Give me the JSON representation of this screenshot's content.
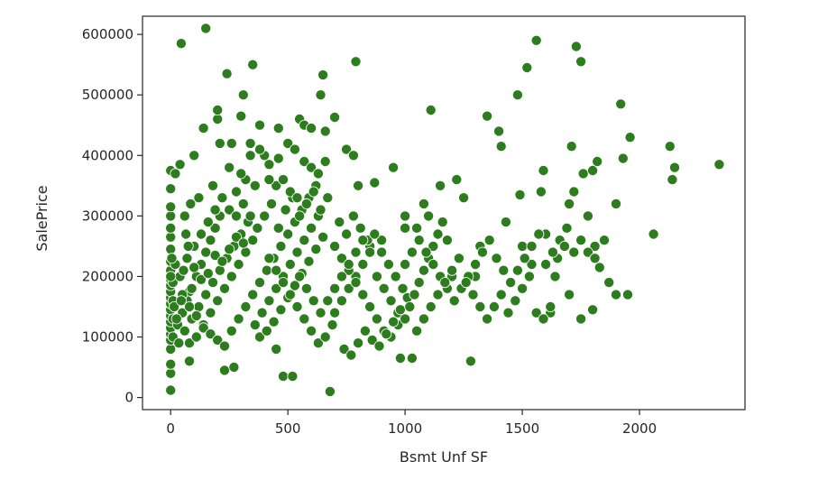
{
  "chart_data": {
    "type": "scatter",
    "title": "",
    "xlabel": "Bsmt Unf SF",
    "ylabel": "SalePrice",
    "xlim": [
      -120,
      2450
    ],
    "ylim": [
      -20000,
      630000
    ],
    "xticks": [
      0,
      500,
      1000,
      1500,
      2000
    ],
    "yticks": [
      0,
      100000,
      200000,
      300000,
      400000,
      500000,
      600000
    ],
    "xtick_labels": [
      "0",
      "500",
      "1000",
      "1500",
      "2000"
    ],
    "ytick_labels": [
      "0",
      "100000",
      "200000",
      "300000",
      "400000",
      "500000",
      "600000"
    ],
    "grid": false,
    "legend": "none",
    "marker_color": "#2d7d1e",
    "marker_edge": "#ffffff",
    "points": [
      [
        0,
        12000
      ],
      [
        0,
        40000
      ],
      [
        0,
        55000
      ],
      [
        0,
        80000
      ],
      [
        0,
        95000
      ],
      [
        0,
        105000
      ],
      [
        0,
        115000
      ],
      [
        0,
        125000
      ],
      [
        0,
        135000
      ],
      [
        0,
        145000
      ],
      [
        0,
        155000
      ],
      [
        0,
        165000
      ],
      [
        0,
        175000
      ],
      [
        0,
        185000
      ],
      [
        0,
        195000
      ],
      [
        0,
        210000
      ],
      [
        0,
        225000
      ],
      [
        0,
        245000
      ],
      [
        0,
        265000
      ],
      [
        0,
        280000
      ],
      [
        0,
        300000
      ],
      [
        0,
        315000
      ],
      [
        0,
        345000
      ],
      [
        0,
        375000
      ],
      [
        10,
        100000
      ],
      [
        10,
        130000
      ],
      [
        10,
        160000
      ],
      [
        10,
        190000
      ],
      [
        20,
        220000
      ],
      [
        20,
        370000
      ],
      [
        40,
        385000
      ],
      [
        45,
        585000
      ],
      [
        60,
        300000
      ],
      [
        80,
        60000
      ],
      [
        80,
        175000
      ],
      [
        100,
        400000
      ],
      [
        120,
        330000
      ],
      [
        140,
        445000
      ],
      [
        150,
        610000
      ],
      [
        180,
        350000
      ],
      [
        200,
        460000
      ],
      [
        200,
        475000
      ],
      [
        210,
        420000
      ],
      [
        230,
        45000
      ],
      [
        240,
        535000
      ],
      [
        270,
        50000
      ],
      [
        300,
        465000
      ],
      [
        310,
        500000
      ],
      [
        340,
        420000
      ],
      [
        350,
        550000
      ],
      [
        380,
        450000
      ],
      [
        400,
        400000
      ],
      [
        420,
        385000
      ],
      [
        450,
        80000
      ],
      [
        460,
        445000
      ],
      [
        480,
        35000
      ],
      [
        520,
        35000
      ],
      [
        550,
        460000
      ],
      [
        570,
        450000
      ],
      [
        600,
        445000
      ],
      [
        640,
        500000
      ],
      [
        650,
        533000
      ],
      [
        660,
        440000
      ],
      [
        680,
        10000
      ],
      [
        700,
        463000
      ],
      [
        750,
        410000
      ],
      [
        780,
        400000
      ],
      [
        790,
        555000
      ],
      [
        800,
        350000
      ],
      [
        850,
        250000
      ],
      [
        870,
        355000
      ],
      [
        900,
        260000
      ],
      [
        950,
        380000
      ],
      [
        980,
        65000
      ],
      [
        1000,
        300000
      ],
      [
        1000,
        280000
      ],
      [
        1030,
        65000
      ],
      [
        1050,
        280000
      ],
      [
        1080,
        320000
      ],
      [
        1100,
        300000
      ],
      [
        1110,
        475000
      ],
      [
        1150,
        350000
      ],
      [
        1200,
        200000
      ],
      [
        1220,
        360000
      ],
      [
        1250,
        330000
      ],
      [
        1280,
        60000
      ],
      [
        1300,
        200000
      ],
      [
        1320,
        250000
      ],
      [
        1350,
        465000
      ],
      [
        1400,
        440000
      ],
      [
        1410,
        415000
      ],
      [
        1430,
        290000
      ],
      [
        1480,
        500000
      ],
      [
        1490,
        335000
      ],
      [
        1500,
        250000
      ],
      [
        1520,
        545000
      ],
      [
        1540,
        220000
      ],
      [
        1560,
        590000
      ],
      [
        1580,
        340000
      ],
      [
        1590,
        375000
      ],
      [
        1600,
        270000
      ],
      [
        1620,
        140000
      ],
      [
        1650,
        230000
      ],
      [
        1700,
        320000
      ],
      [
        1710,
        415000
      ],
      [
        1720,
        340000
      ],
      [
        1730,
        580000
      ],
      [
        1750,
        555000
      ],
      [
        1760,
        370000
      ],
      [
        1780,
        300000
      ],
      [
        1800,
        375000
      ],
      [
        1810,
        250000
      ],
      [
        1820,
        390000
      ],
      [
        1830,
        215000
      ],
      [
        1850,
        260000
      ],
      [
        1870,
        190000
      ],
      [
        1900,
        320000
      ],
      [
        1920,
        485000
      ],
      [
        1930,
        395000
      ],
      [
        1950,
        170000
      ],
      [
        1960,
        430000
      ],
      [
        2060,
        270000
      ],
      [
        2130,
        415000
      ],
      [
        2140,
        360000
      ],
      [
        2150,
        380000
      ],
      [
        2340,
        385000
      ],
      [
        1900,
        170000
      ],
      [
        1800,
        145000
      ],
      [
        1750,
        130000
      ],
      [
        1700,
        170000
      ],
      [
        30,
        120000
      ],
      [
        50,
        140000
      ],
      [
        70,
        160000
      ],
      [
        90,
        180000
      ],
      [
        110,
        200000
      ],
      [
        130,
        220000
      ],
      [
        150,
        240000
      ],
      [
        170,
        260000
      ],
      [
        190,
        280000
      ],
      [
        210,
        300000
      ],
      [
        60,
        110000
      ],
      [
        90,
        130000
      ],
      [
        120,
        150000
      ],
      [
        150,
        170000
      ],
      [
        180,
        190000
      ],
      [
        210,
        210000
      ],
      [
        240,
        230000
      ],
      [
        270,
        250000
      ],
      [
        300,
        270000
      ],
      [
        330,
        290000
      ],
      [
        80,
        90000
      ],
      [
        110,
        100000
      ],
      [
        140,
        120000
      ],
      [
        170,
        140000
      ],
      [
        200,
        160000
      ],
      [
        230,
        180000
      ],
      [
        260,
        200000
      ],
      [
        290,
        220000
      ],
      [
        320,
        240000
      ],
      [
        350,
        260000
      ],
      [
        100,
        250000
      ],
      [
        130,
        270000
      ],
      [
        160,
        290000
      ],
      [
        190,
        310000
      ],
      [
        220,
        330000
      ],
      [
        250,
        310000
      ],
      [
        280,
        300000
      ],
      [
        310,
        320000
      ],
      [
        340,
        300000
      ],
      [
        370,
        280000
      ],
      [
        40,
        200000
      ],
      [
        70,
        230000
      ],
      [
        100,
        215000
      ],
      [
        130,
        195000
      ],
      [
        160,
        205000
      ],
      [
        190,
        235000
      ],
      [
        220,
        225000
      ],
      [
        250,
        245000
      ],
      [
        280,
        265000
      ],
      [
        310,
        255000
      ],
      [
        50,
        170000
      ],
      [
        80,
        150000
      ],
      [
        110,
        135000
      ],
      [
        140,
        115000
      ],
      [
        170,
        105000
      ],
      [
        200,
        95000
      ],
      [
        230,
        85000
      ],
      [
        260,
        110000
      ],
      [
        290,
        130000
      ],
      [
        320,
        150000
      ],
      [
        350,
        170000
      ],
      [
        380,
        190000
      ],
      [
        410,
        210000
      ],
      [
        440,
        230000
      ],
      [
        470,
        250000
      ],
      [
        500,
        270000
      ],
      [
        530,
        290000
      ],
      [
        560,
        310000
      ],
      [
        590,
        330000
      ],
      [
        620,
        350000
      ],
      [
        360,
        120000
      ],
      [
        390,
        140000
      ],
      [
        420,
        160000
      ],
      [
        450,
        180000
      ],
      [
        480,
        200000
      ],
      [
        510,
        220000
      ],
      [
        540,
        240000
      ],
      [
        570,
        260000
      ],
      [
        600,
        280000
      ],
      [
        630,
        300000
      ],
      [
        380,
        100000
      ],
      [
        410,
        110000
      ],
      [
        440,
        125000
      ],
      [
        470,
        145000
      ],
      [
        500,
        165000
      ],
      [
        530,
        185000
      ],
      [
        560,
        205000
      ],
      [
        590,
        225000
      ],
      [
        620,
        245000
      ],
      [
        650,
        265000
      ],
      [
        400,
        300000
      ],
      [
        430,
        320000
      ],
      [
        460,
        280000
      ],
      [
        490,
        310000
      ],
      [
        520,
        330000
      ],
      [
        550,
        300000
      ],
      [
        580,
        320000
      ],
      [
        610,
        340000
      ],
      [
        640,
        310000
      ],
      [
        670,
        330000
      ],
      [
        420,
        230000
      ],
      [
        450,
        210000
      ],
      [
        480,
        190000
      ],
      [
        510,
        170000
      ],
      [
        540,
        150000
      ],
      [
        570,
        130000
      ],
      [
        600,
        110000
      ],
      [
        630,
        90000
      ],
      [
        660,
        100000
      ],
      [
        690,
        120000
      ],
      [
        700,
        140000
      ],
      [
        730,
        160000
      ],
      [
        760,
        180000
      ],
      [
        790,
        200000
      ],
      [
        820,
        220000
      ],
      [
        850,
        240000
      ],
      [
        880,
        200000
      ],
      [
        910,
        180000
      ],
      [
        940,
        160000
      ],
      [
        970,
        140000
      ],
      [
        700,
        250000
      ],
      [
        730,
        230000
      ],
      [
        760,
        210000
      ],
      [
        790,
        190000
      ],
      [
        820,
        170000
      ],
      [
        850,
        150000
      ],
      [
        880,
        130000
      ],
      [
        910,
        110000
      ],
      [
        940,
        100000
      ],
      [
        970,
        120000
      ],
      [
        720,
        290000
      ],
      [
        750,
        270000
      ],
      [
        780,
        300000
      ],
      [
        810,
        280000
      ],
      [
        840,
        260000
      ],
      [
        870,
        270000
      ],
      [
        900,
        240000
      ],
      [
        930,
        220000
      ],
      [
        960,
        200000
      ],
      [
        990,
        180000
      ],
      [
        740,
        80000
      ],
      [
        770,
        70000
      ],
      [
        800,
        90000
      ],
      [
        830,
        110000
      ],
      [
        860,
        95000
      ],
      [
        890,
        85000
      ],
      [
        920,
        105000
      ],
      [
        950,
        125000
      ],
      [
        980,
        145000
      ],
      [
        1010,
        165000
      ],
      [
        1000,
        130000
      ],
      [
        1020,
        150000
      ],
      [
        1040,
        170000
      ],
      [
        1060,
        190000
      ],
      [
        1080,
        210000
      ],
      [
        1100,
        230000
      ],
      [
        1120,
        250000
      ],
      [
        1140,
        270000
      ],
      [
        1160,
        290000
      ],
      [
        1180,
        260000
      ],
      [
        1000,
        220000
      ],
      [
        1030,
        240000
      ],
      [
        1060,
        260000
      ],
      [
        1090,
        240000
      ],
      [
        1120,
        220000
      ],
      [
        1150,
        200000
      ],
      [
        1180,
        180000
      ],
      [
        1210,
        160000
      ],
      [
        1240,
        180000
      ],
      [
        1270,
        200000
      ],
      [
        1050,
        110000
      ],
      [
        1080,
        130000
      ],
      [
        1110,
        150000
      ],
      [
        1140,
        170000
      ],
      [
        1170,
        190000
      ],
      [
        1200,
        210000
      ],
      [
        1230,
        230000
      ],
      [
        1260,
        190000
      ],
      [
        1290,
        170000
      ],
      [
        1320,
        150000
      ],
      [
        1300,
        220000
      ],
      [
        1330,
        240000
      ],
      [
        1360,
        260000
      ],
      [
        1390,
        230000
      ],
      [
        1420,
        210000
      ],
      [
        1450,
        190000
      ],
      [
        1480,
        210000
      ],
      [
        1510,
        230000
      ],
      [
        1540,
        250000
      ],
      [
        1570,
        270000
      ],
      [
        1350,
        130000
      ],
      [
        1380,
        150000
      ],
      [
        1410,
        170000
      ],
      [
        1440,
        140000
      ],
      [
        1470,
        160000
      ],
      [
        1500,
        180000
      ],
      [
        1530,
        200000
      ],
      [
        1560,
        140000
      ],
      [
        1590,
        130000
      ],
      [
        1620,
        150000
      ],
      [
        1600,
        220000
      ],
      [
        1630,
        240000
      ],
      [
        1660,
        260000
      ],
      [
        1690,
        280000
      ],
      [
        1720,
        240000
      ],
      [
        1750,
        260000
      ],
      [
        1780,
        240000
      ],
      [
        1810,
        230000
      ],
      [
        1640,
        200000
      ],
      [
        1680,
        250000
      ],
      [
        0,
        200000
      ],
      [
        5,
        230000
      ],
      [
        15,
        150000
      ],
      [
        25,
        130000
      ],
      [
        35,
        90000
      ],
      [
        45,
        160000
      ],
      [
        55,
        210000
      ],
      [
        65,
        270000
      ],
      [
        75,
        250000
      ],
      [
        85,
        320000
      ],
      [
        550,
        200000
      ],
      [
        580,
        180000
      ],
      [
        610,
        160000
      ],
      [
        640,
        140000
      ],
      [
        670,
        160000
      ],
      [
        700,
        180000
      ],
      [
        730,
        200000
      ],
      [
        760,
        220000
      ],
      [
        790,
        240000
      ],
      [
        820,
        260000
      ],
      [
        450,
        350000
      ],
      [
        480,
        360000
      ],
      [
        510,
        340000
      ],
      [
        540,
        330000
      ],
      [
        570,
        390000
      ],
      [
        600,
        380000
      ],
      [
        630,
        370000
      ],
      [
        660,
        390000
      ],
      [
        500,
        420000
      ],
      [
        530,
        410000
      ],
      [
        250,
        380000
      ],
      [
        280,
        340000
      ],
      [
        320,
        360000
      ],
      [
        360,
        350000
      ],
      [
        260,
        420000
      ],
      [
        300,
        370000
      ],
      [
        340,
        400000
      ],
      [
        380,
        410000
      ],
      [
        420,
        360000
      ],
      [
        460,
        395000
      ]
    ]
  }
}
